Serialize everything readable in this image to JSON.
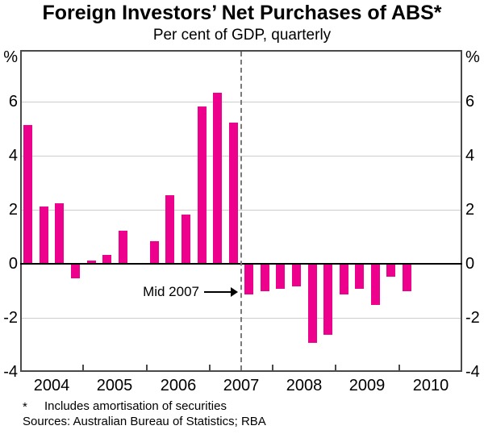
{
  "chart_data": {
    "type": "bar",
    "title": "Foreign Investors’ Net Purchases of ABS*",
    "subtitle": "Per cent of GDP, quarterly",
    "y_unit": "%",
    "yticks": [
      6,
      4,
      2,
      0,
      -2,
      -4
    ],
    "ylim": [
      -4,
      7.93
    ],
    "grid": "horizontal-light-gray",
    "bar_color": "#EC008C",
    "frame_color": "#4a4a4a",
    "x_year_labels": [
      "2004",
      "2005",
      "2006",
      "2007",
      "2008",
      "2009",
      "2010"
    ],
    "quarters_per_year": 4,
    "series": [
      {
        "name": "Foreign investors' net purchases of ABS (% of GDP)",
        "points": [
          {
            "quarter": "2004 Q1",
            "value": 5.1
          },
          {
            "quarter": "2004 Q2",
            "value": 2.1
          },
          {
            "quarter": "2004 Q3",
            "value": 2.2
          },
          {
            "quarter": "2004 Q4",
            "value": -0.5
          },
          {
            "quarter": "2005 Q1",
            "value": 0.1
          },
          {
            "quarter": "2005 Q2",
            "value": 0.3
          },
          {
            "quarter": "2005 Q3",
            "value": 1.2
          },
          {
            "quarter": "2005 Q4",
            "value": 0.0
          },
          {
            "quarter": "2006 Q1",
            "value": 0.8
          },
          {
            "quarter": "2006 Q2",
            "value": 2.5
          },
          {
            "quarter": "2006 Q3",
            "value": 1.8
          },
          {
            "quarter": "2006 Q4",
            "value": 5.8
          },
          {
            "quarter": "2007 Q1",
            "value": 6.3
          },
          {
            "quarter": "2007 Q2",
            "value": 5.2
          },
          {
            "quarter": "2007 Q3",
            "value": -1.1
          },
          {
            "quarter": "2007 Q4",
            "value": -1.0
          },
          {
            "quarter": "2008 Q1",
            "value": -0.9
          },
          {
            "quarter": "2008 Q2",
            "value": -0.8
          },
          {
            "quarter": "2008 Q3",
            "value": -2.9
          },
          {
            "quarter": "2008 Q4",
            "value": -2.6
          },
          {
            "quarter": "2009 Q1",
            "value": -1.1
          },
          {
            "quarter": "2009 Q2",
            "value": -0.9
          },
          {
            "quarter": "2009 Q3",
            "value": -1.5
          },
          {
            "quarter": "2009 Q4",
            "value": -0.45
          },
          {
            "quarter": "2010 Q1",
            "value": -1.0
          }
        ]
      }
    ],
    "annotation": {
      "label": "Mid 2007",
      "quarters_from_start": 14,
      "description": "dashed vertical line between 2007 Q2 and 2007 Q3"
    }
  },
  "footer": {
    "footnote_marker": "*",
    "footnote": "Includes amortisation of securities",
    "sources": "Sources: Australian Bureau of Statistics; RBA"
  }
}
